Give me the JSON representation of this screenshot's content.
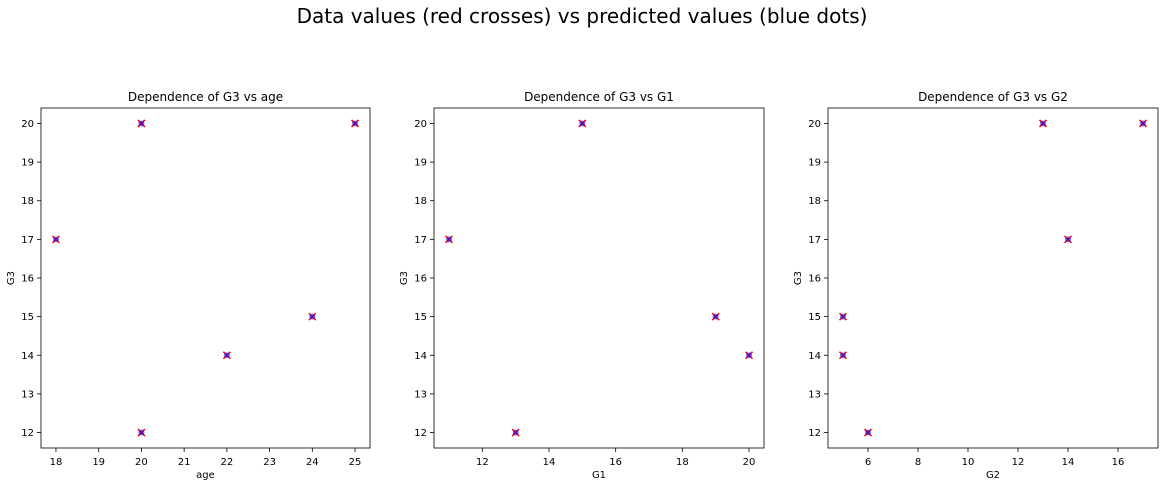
{
  "figure": {
    "title": "Data values (red crosses) vs predicted values (blue dots)"
  },
  "colors": {
    "data_marker": "#ff0000",
    "predicted_marker": "#0000ff",
    "axis": "#000000"
  },
  "chart_data": [
    {
      "type": "scatter",
      "title": "Dependence of G3 vs age",
      "xlabel": "age",
      "ylabel": "G3",
      "xlim": [
        17.65,
        25.35
      ],
      "ylim": [
        11.6,
        20.4
      ],
      "xticks": [
        18,
        19,
        20,
        21,
        22,
        23,
        24,
        25
      ],
      "yticks": [
        12,
        13,
        14,
        15,
        16,
        17,
        18,
        19,
        20
      ],
      "grid": false,
      "series": [
        {
          "name": "data",
          "marker": "x",
          "x": [
            18,
            20,
            20,
            22,
            24,
            25
          ],
          "y": [
            17,
            20,
            12,
            14,
            15,
            20
          ]
        },
        {
          "name": "predicted",
          "marker": "o",
          "x": [
            18,
            20,
            20,
            22,
            24,
            25
          ],
          "y": [
            17,
            20,
            12,
            14,
            15,
            20
          ]
        }
      ]
    },
    {
      "type": "scatter",
      "title": "Dependence of G3 vs G1",
      "xlabel": "G1",
      "ylabel": "G3",
      "xlim": [
        10.55,
        20.45
      ],
      "ylim": [
        11.6,
        20.4
      ],
      "xticks": [
        12,
        14,
        16,
        18,
        20
      ],
      "yticks": [
        12,
        13,
        14,
        15,
        16,
        17,
        18,
        19,
        20
      ],
      "grid": false,
      "series": [
        {
          "name": "data",
          "marker": "x",
          "x": [
            11,
            13,
            15,
            19,
            20
          ],
          "y": [
            17,
            12,
            20,
            15,
            14
          ]
        },
        {
          "name": "predicted",
          "marker": "o",
          "x": [
            11,
            13,
            15,
            19,
            20
          ],
          "y": [
            17,
            12,
            20,
            15,
            14
          ]
        }
      ]
    },
    {
      "type": "scatter",
      "title": "Dependence of G3 vs G2",
      "xlabel": "G2",
      "ylabel": "G3",
      "xlim": [
        4.4,
        17.6
      ],
      "ylim": [
        11.6,
        20.4
      ],
      "xticks": [
        6,
        8,
        10,
        12,
        14,
        16
      ],
      "yticks": [
        12,
        13,
        14,
        15,
        16,
        17,
        18,
        19,
        20
      ],
      "grid": false,
      "series": [
        {
          "name": "data",
          "marker": "x",
          "x": [
            5,
            5,
            6,
            13,
            14,
            17
          ],
          "y": [
            15,
            14,
            12,
            20,
            17,
            20
          ]
        },
        {
          "name": "predicted",
          "marker": "o",
          "x": [
            5,
            5,
            6,
            13,
            14,
            17
          ],
          "y": [
            15,
            14,
            12,
            20,
            17,
            20
          ]
        }
      ]
    }
  ]
}
